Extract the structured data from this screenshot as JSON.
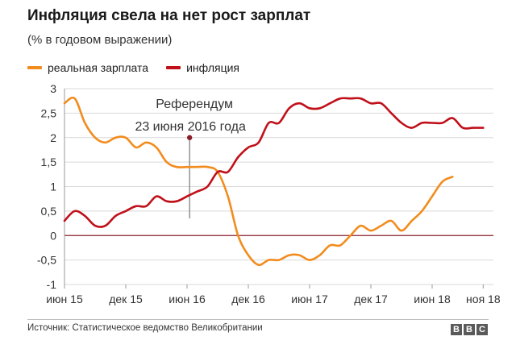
{
  "title": "Инфляция свела на нет рост зарплат",
  "subtitle": "(% в годовом выражении)",
  "legend": {
    "items": [
      {
        "label": "реальная зарплата",
        "color": "#f28c1e"
      },
      {
        "label": "инфляция",
        "color": "#c0101a"
      }
    ]
  },
  "source": "Источник: Статистическое ведомство Великобритании",
  "logo": [
    "B",
    "B",
    "C"
  ],
  "chart_data": {
    "type": "line",
    "x_ticks": [
      {
        "label": "июн 15",
        "x": 0
      },
      {
        "label": "дек 15",
        "x": 6
      },
      {
        "label": "июн 16",
        "x": 12
      },
      {
        "label": "дек 16",
        "x": 18
      },
      {
        "label": "июн 17",
        "x": 24
      },
      {
        "label": "дек 17",
        "x": 30
      },
      {
        "label": "июн 18",
        "x": 36
      },
      {
        "label": "ноя 18",
        "x": 41
      }
    ],
    "y_ticks": [
      "3",
      "2,5",
      "2",
      "1,5",
      "1",
      "0,5",
      "0",
      "-0,5",
      "-1"
    ],
    "ylim": [
      -1,
      3
    ],
    "xlim": [
      0,
      42
    ],
    "annotation": {
      "lines": [
        "Референдум",
        "23 июня 2016 года"
      ],
      "x": 12.25
    },
    "series": [
      {
        "name": "реальная зарплата",
        "color": "#f28c1e",
        "values": [
          2.7,
          2.8,
          2.3,
          2.0,
          1.9,
          2.0,
          2.0,
          1.8,
          1.9,
          1.8,
          1.5,
          1.4,
          1.4,
          1.4,
          1.4,
          1.3,
          0.8,
          0.0,
          -0.4,
          -0.6,
          -0.5,
          -0.5,
          -0.4,
          -0.4,
          -0.5,
          -0.4,
          -0.2,
          -0.2,
          0.0,
          0.2,
          0.1,
          0.2,
          0.3,
          0.1,
          0.3,
          0.5,
          0.8,
          1.1,
          1.2
        ]
      },
      {
        "name": "инфляция",
        "color": "#c0101a",
        "values": [
          0.3,
          0.5,
          0.4,
          0.2,
          0.2,
          0.4,
          0.5,
          0.6,
          0.6,
          0.8,
          0.7,
          0.7,
          0.8,
          0.9,
          1.0,
          1.3,
          1.3,
          1.6,
          1.8,
          1.9,
          2.3,
          2.3,
          2.6,
          2.7,
          2.6,
          2.6,
          2.7,
          2.8,
          2.8,
          2.8,
          2.7,
          2.7,
          2.5,
          2.3,
          2.2,
          2.3,
          2.3,
          2.3,
          2.4,
          2.2,
          2.2,
          2.2
        ]
      }
    ]
  }
}
